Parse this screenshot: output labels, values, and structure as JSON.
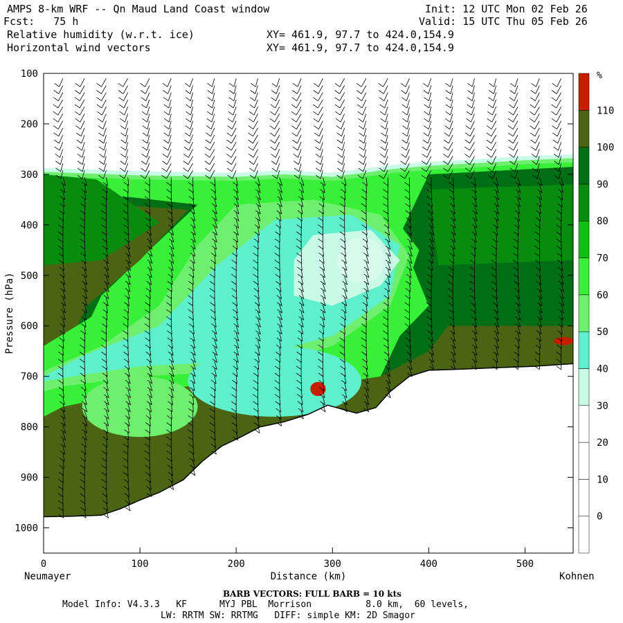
{
  "header": {
    "title": "AMPS 8-km WRF -- Qn Maud Land Coast window",
    "fcst": "Fcst:   75 h",
    "init": "Init: 12 UTC Mon 02 Feb 26",
    "valid": "Valid: 15 UTC Thu 05 Feb 26",
    "field1": "Relative humidity (w.r.t. ice)",
    "field2": "Horizontal wind vectors",
    "xy1": "XY= 461.9, 97.7 to 424.0,154.9",
    "xy2": "XY= 461.9, 97.7 to 424.0,154.9"
  },
  "chart_data": {
    "type": "filled-contour cross-section",
    "title": "Relative humidity (w.r.t. ice) and horizontal wind vectors",
    "xlabel": "Distance (km)",
    "ylabel": "Pressure (hPa)",
    "xlim": [
      0,
      550
    ],
    "ylim": [
      100,
      1050
    ],
    "x_ticks": [
      0,
      100,
      200,
      300,
      400,
      500
    ],
    "x_tick_labels": [
      "0",
      "100",
      "200",
      "300",
      "400",
      "500"
    ],
    "y_ticks": [
      100,
      200,
      300,
      400,
      500,
      600,
      700,
      800,
      900,
      1000
    ],
    "y_tick_labels": [
      "100",
      "200",
      "300",
      "400",
      "500",
      "600",
      "700",
      "800",
      "900",
      "1000"
    ],
    "left_endpoint_label": "Neumayer",
    "right_endpoint_label": "Kohnen",
    "colorbar": {
      "unit": "%",
      "levels": [
        0,
        10,
        20,
        30,
        40,
        50,
        60,
        70,
        80,
        90,
        100,
        110
      ],
      "labels": [
        "0",
        "10",
        "20",
        "30",
        "40",
        "50",
        "60",
        "70",
        "80",
        "90",
        "100",
        "110"
      ],
      "colors": [
        "#ffffff",
        "#ffffff",
        "#ffffff",
        "#ffffff",
        "#c8fae6",
        "#5ef0cd",
        "#6ef06e",
        "#38f038",
        "#10c010",
        "#088c10",
        "#006e14",
        "#4a6414",
        "#c81e00"
      ]
    },
    "terrain_surface": [
      [
        0,
        978
      ],
      [
        30,
        977
      ],
      [
        60,
        975
      ],
      [
        80,
        962
      ],
      [
        100,
        945
      ],
      [
        120,
        930
      ],
      [
        145,
        905
      ],
      [
        165,
        868
      ],
      [
        185,
        838
      ],
      [
        205,
        820
      ],
      [
        225,
        800
      ],
      [
        250,
        790
      ],
      [
        275,
        775
      ],
      [
        295,
        757
      ],
      [
        310,
        765
      ],
      [
        325,
        773
      ],
      [
        345,
        762
      ],
      [
        360,
        730
      ],
      [
        380,
        700
      ],
      [
        400,
        688
      ],
      [
        430,
        686
      ],
      [
        470,
        683
      ],
      [
        510,
        680
      ],
      [
        550,
        675
      ]
    ],
    "cloud_top_pressure": [
      [
        0,
        295
      ],
      [
        100,
        302
      ],
      [
        200,
        305
      ],
      [
        250,
        300
      ],
      [
        300,
        305
      ],
      [
        360,
        290
      ],
      [
        400,
        283
      ],
      [
        450,
        278
      ],
      [
        500,
        272
      ],
      [
        550,
        268
      ]
    ],
    "moist_layer_extent": {
      "upper_left": [
        [
          0,
          345
        ],
        [
          160,
          360
        ]
      ],
      "lower_right": [
        [
          380,
          700
        ],
        [
          550,
          675
        ]
      ]
    },
    "dry_tongue": {
      "rh_min": 30,
      "center_distance_km": 330,
      "center_pressure_hpa": 490
    },
    "barb_note": "BARB VECTORS:  FULL BARB = 10 kts"
  },
  "footer": {
    "line1": "Model Info: V4.3.3   KF      MYJ PBL  Morrison          8.0 km,  60 levels,",
    "line2": "LW: RRTM SW: RRTMG   DIFF: simple KM: 2D Smagor"
  }
}
